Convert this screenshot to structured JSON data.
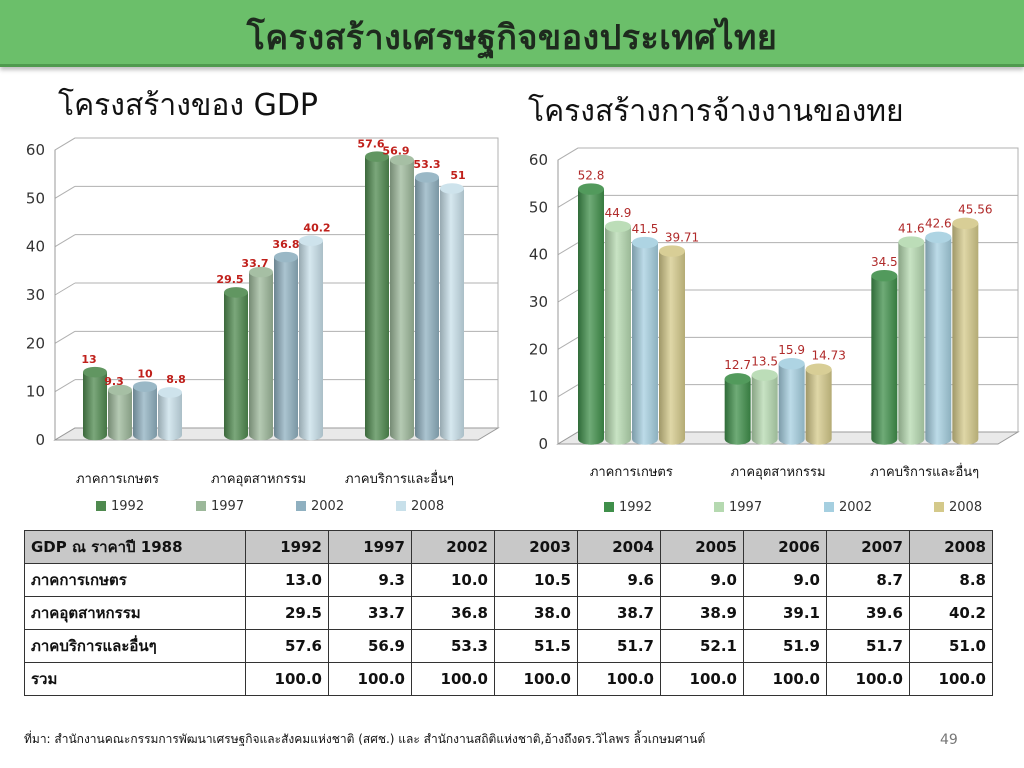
{
  "title": "โครงสร้างเศรษฐกิจของประเทศไทย",
  "colors": {
    "title_bar": "#6bbf6a",
    "label_red": "#c0201b"
  },
  "chart_data": [
    {
      "type": "bar",
      "title": "โครงสร้างของ GDP",
      "categories": [
        "ภาคการเกษตร",
        "ภาคอุตสาหกรรม",
        "ภาคบริการและอื่นๆ"
      ],
      "ylim": [
        0,
        60
      ],
      "yticks": [
        "0",
        "10",
        "20",
        "30",
        "40",
        "50",
        "60"
      ],
      "legend_position": "bottom",
      "series": [
        {
          "name": "1992",
          "values": [
            13,
            29.5,
            57.6
          ],
          "labels": [
            "13",
            "29.5",
            "57.6"
          ],
          "color": "#4f8a4f"
        },
        {
          "name": "1997",
          "values": [
            9.3,
            33.7,
            56.9
          ],
          "labels": [
            "9.3",
            "33.7",
            "56.9"
          ],
          "color": "#9cb89a"
        },
        {
          "name": "2002",
          "values": [
            10,
            36.8,
            53.3
          ],
          "labels": [
            "10",
            "36.8",
            "53.3"
          ],
          "color": "#8fb0c0"
        },
        {
          "name": "2008",
          "values": [
            8.8,
            40.2,
            51
          ],
          "labels": [
            "8.8",
            "40.2",
            "51"
          ],
          "color": "#c8e0ea"
        }
      ]
    },
    {
      "type": "bar",
      "title": "โครงสร้างการจ้างงานของทย",
      "categories": [
        "ภาคการเกษตร",
        "ภาคอุตสาหกรรม",
        "ภาคบริการและอื่นๆ"
      ],
      "ylim": [
        0,
        60
      ],
      "yticks": [
        "0",
        "10",
        "20",
        "30",
        "40",
        "50",
        "60"
      ],
      "legend_position": "bottom",
      "series": [
        {
          "name": "1992",
          "values": [
            52.8,
            12.7,
            34.5
          ],
          "labels": [
            "52.8",
            "12.7",
            "34.5"
          ],
          "color": "#3f8f4a"
        },
        {
          "name": "1997",
          "values": [
            44.9,
            13.5,
            41.6
          ],
          "labels": [
            "44.9",
            "13.5",
            "41.6"
          ],
          "color": "#b5d9b0"
        },
        {
          "name": "2002",
          "values": [
            41.5,
            15.9,
            42.6
          ],
          "labels": [
            "41.5",
            "15.9",
            "42.6"
          ],
          "color": "#a5cfe0"
        },
        {
          "name": "2008",
          "values": [
            39.71,
            14.73,
            45.56
          ],
          "labels": [
            "39.71",
            "14.73",
            "45.56"
          ],
          "color": "#d4c98a"
        }
      ]
    }
  ],
  "table": {
    "header": [
      "GDP ณ ราคาปี 1988",
      "1992",
      "1997",
      "2002",
      "2003",
      "2004",
      "2005",
      "2006",
      "2007",
      "2008"
    ],
    "rows": [
      [
        "ภาคการเกษตร",
        "13.0",
        "9.3",
        "10.0",
        "10.5",
        "9.6",
        "9.0",
        "9.0",
        "8.7",
        "8.8"
      ],
      [
        "ภาคอุตสาหกรรม",
        "29.5",
        "33.7",
        "36.8",
        "38.0",
        "38.7",
        "38.9",
        "39.1",
        "39.6",
        "40.2"
      ],
      [
        "ภาคบริการและอื่นๆ",
        "57.6",
        "56.9",
        "53.3",
        "51.5",
        "51.7",
        "52.1",
        "51.9",
        "51.7",
        "51.0"
      ],
      [
        "รวม",
        "100.0",
        "100.0",
        "100.0",
        "100.0",
        "100.0",
        "100.0",
        "100.0",
        "100.0",
        "100.0"
      ]
    ]
  },
  "source": "ที่มา: สำนักงานคณะกรรมการพัฒนาเศรษฐกิจและสังคมแห่งชาติ (สศช.) และ สำนักงานสถิติแห่งชาติ,อ้างถึงดร.วิไลพร ลิ้วเกษมศานต์",
  "page_number": "49"
}
